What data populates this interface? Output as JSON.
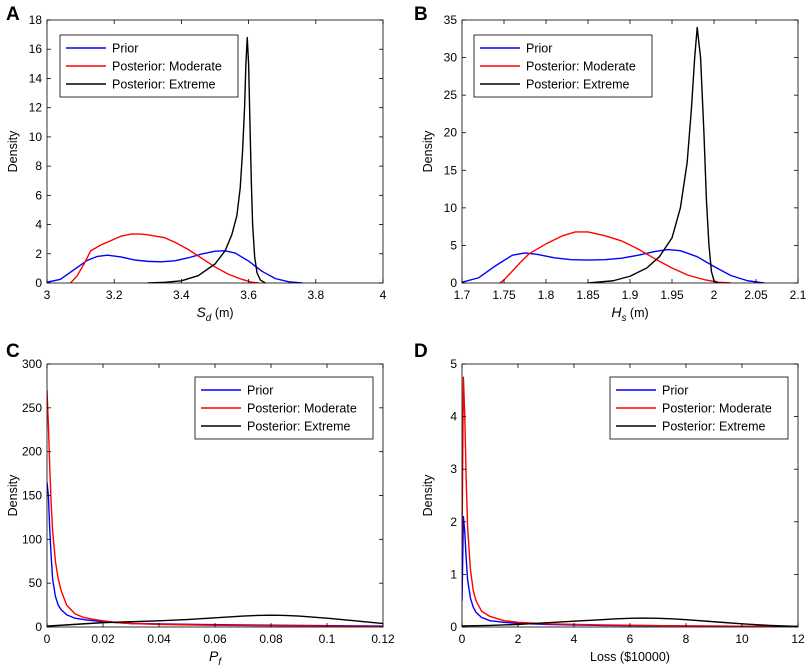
{
  "chart_data": [
    {
      "panel": "A",
      "type": "line",
      "title": "",
      "xlabel": "S",
      "xlabel_sub": "d",
      "xlabel_unit": " (m)",
      "ylabel": "Density",
      "xlim": [
        3,
        4
      ],
      "ylim": [
        0,
        18
      ],
      "xticks": [
        3,
        3.2,
        3.4,
        3.6,
        3.8,
        4
      ],
      "xtick_labels": [
        "3",
        "3.2",
        "3.4",
        "3.6",
        "3.8",
        "4"
      ],
      "yticks": [
        0,
        2,
        4,
        6,
        8,
        10,
        12,
        14,
        16,
        18
      ],
      "ytick_labels": [
        "0",
        "2",
        "4",
        "6",
        "8",
        "10",
        "12",
        "14",
        "16",
        "18"
      ],
      "legend_position": "top-left",
      "series": [
        {
          "name": "Prior",
          "color": "#0000ff",
          "x": [
            3.0,
            3.04,
            3.08,
            3.12,
            3.15,
            3.18,
            3.22,
            3.26,
            3.3,
            3.34,
            3.38,
            3.42,
            3.46,
            3.5,
            3.53,
            3.56,
            3.6,
            3.64,
            3.68,
            3.72,
            3.76
          ],
          "y": [
            0.05,
            0.25,
            0.9,
            1.55,
            1.82,
            1.9,
            1.78,
            1.58,
            1.48,
            1.45,
            1.52,
            1.72,
            1.98,
            2.18,
            2.2,
            2.05,
            1.5,
            0.8,
            0.3,
            0.08,
            0.0
          ]
        },
        {
          "name": "Posterior: Moderate",
          "color": "#ff0000",
          "x": [
            3.07,
            3.09,
            3.11,
            3.13,
            3.16,
            3.19,
            3.22,
            3.25,
            3.28,
            3.3,
            3.32,
            3.35,
            3.38,
            3.42,
            3.46,
            3.5,
            3.54,
            3.58,
            3.61,
            3.63
          ],
          "y": [
            0.0,
            0.5,
            1.3,
            2.2,
            2.6,
            2.9,
            3.2,
            3.35,
            3.35,
            3.3,
            3.22,
            3.1,
            2.8,
            2.3,
            1.7,
            1.1,
            0.6,
            0.25,
            0.05,
            0.0
          ]
        },
        {
          "name": "Posterior: Extreme",
          "color": "#000000",
          "x": [
            3.3,
            3.35,
            3.4,
            3.45,
            3.5,
            3.53,
            3.55,
            3.565,
            3.575,
            3.582,
            3.588,
            3.592,
            3.596,
            3.6,
            3.604,
            3.608,
            3.612,
            3.618,
            3.625,
            3.635,
            3.65
          ],
          "y": [
            0.0,
            0.05,
            0.15,
            0.5,
            1.3,
            2.2,
            3.3,
            4.6,
            6.5,
            9.0,
            12.0,
            15.0,
            16.8,
            15.0,
            11.0,
            7.0,
            4.0,
            1.8,
            0.7,
            0.2,
            0.0
          ]
        }
      ]
    },
    {
      "panel": "B",
      "type": "line",
      "title": "",
      "xlabel": "H",
      "xlabel_sub": "s",
      "xlabel_unit": " (m)",
      "ylabel": "Density",
      "xlim": [
        1.7,
        2.1
      ],
      "ylim": [
        0,
        35
      ],
      "xticks": [
        1.7,
        1.75,
        1.8,
        1.85,
        1.9,
        1.95,
        2.0,
        2.05,
        2.1
      ],
      "xtick_labels": [
        "1.7",
        "1.75",
        "1.8",
        "1.85",
        "1.9",
        "1.95",
        "2",
        "2.05",
        "2.1"
      ],
      "yticks": [
        0,
        5,
        10,
        15,
        20,
        25,
        30,
        35
      ],
      "ytick_labels": [
        "0",
        "5",
        "10",
        "15",
        "20",
        "25",
        "30",
        "35"
      ],
      "legend_position": "top-left",
      "series": [
        {
          "name": "Prior",
          "color": "#0000ff",
          "x": [
            1.7,
            1.72,
            1.74,
            1.76,
            1.775,
            1.79,
            1.81,
            1.83,
            1.85,
            1.87,
            1.89,
            1.91,
            1.93,
            1.945,
            1.96,
            1.98,
            2.0,
            2.02,
            2.04,
            2.06
          ],
          "y": [
            0.1,
            0.7,
            2.3,
            3.7,
            4.0,
            3.8,
            3.35,
            3.1,
            3.05,
            3.1,
            3.3,
            3.7,
            4.2,
            4.45,
            4.3,
            3.5,
            2.2,
            1.0,
            0.3,
            0.0
          ]
        },
        {
          "name": "Posterior: Moderate",
          "color": "#ff0000",
          "x": [
            1.745,
            1.75,
            1.76,
            1.77,
            1.78,
            1.8,
            1.82,
            1.835,
            1.85,
            1.87,
            1.89,
            1.91,
            1.93,
            1.95,
            1.97,
            1.99,
            2.005,
            2.02
          ],
          "y": [
            0.0,
            0.4,
            1.6,
            2.8,
            3.9,
            5.2,
            6.3,
            6.8,
            6.8,
            6.3,
            5.6,
            4.5,
            3.2,
            2.0,
            1.0,
            0.4,
            0.1,
            0.0
          ]
        },
        {
          "name": "Posterior: Extreme",
          "color": "#000000",
          "x": [
            1.85,
            1.88,
            1.9,
            1.92,
            1.935,
            1.95,
            1.96,
            1.968,
            1.973,
            1.977,
            1.98,
            1.984,
            1.988,
            1.991,
            1.994,
            1.997,
            2.0,
            2.005
          ],
          "y": [
            0.0,
            0.3,
            0.9,
            2.0,
            3.5,
            6.0,
            10.0,
            16.0,
            23.0,
            30.0,
            34.0,
            30.0,
            20.0,
            11.0,
            5.0,
            1.5,
            0.3,
            0.0
          ]
        }
      ]
    },
    {
      "panel": "C",
      "type": "line",
      "title": "",
      "xlabel": "P",
      "xlabel_sub": "f",
      "xlabel_unit": "",
      "ylabel": "Density",
      "xlim": [
        0,
        0.12
      ],
      "ylim": [
        0,
        300
      ],
      "xticks": [
        0,
        0.02,
        0.04,
        0.06,
        0.08,
        0.1,
        0.12
      ],
      "xtick_labels": [
        "0",
        "0.02",
        "0.04",
        "0.06",
        "0.08",
        "0.1",
        "0.12"
      ],
      "yticks": [
        0,
        50,
        100,
        150,
        200,
        250,
        300
      ],
      "ytick_labels": [
        "0",
        "50",
        "100",
        "150",
        "200",
        "250",
        "300"
      ],
      "legend_position": "top-right",
      "series": [
        {
          "name": "Prior",
          "color": "#0000ff",
          "x": [
            0.0,
            0.0005,
            0.001,
            0.0015,
            0.002,
            0.003,
            0.004,
            0.005,
            0.007,
            0.01,
            0.014,
            0.02,
            0.03,
            0.05,
            0.08,
            0.12
          ],
          "y": [
            165,
            150,
            110,
            80,
            55,
            35,
            25,
            20,
            14,
            10,
            8,
            6,
            4,
            3,
            2,
            1
          ]
        },
        {
          "name": "Posterior: Moderate",
          "color": "#ff0000",
          "x": [
            0.0,
            0.0005,
            0.001,
            0.0015,
            0.002,
            0.003,
            0.004,
            0.005,
            0.007,
            0.01,
            0.013,
            0.016,
            0.02,
            0.025,
            0.03,
            0.04,
            0.06,
            0.08,
            0.1,
            0.12
          ],
          "y": [
            270,
            230,
            180,
            140,
            110,
            75,
            55,
            42,
            25,
            15,
            11,
            9,
            7,
            5,
            4,
            3,
            2,
            1.5,
            1,
            0.5
          ]
        },
        {
          "name": "Posterior: Extreme",
          "color": "#000000",
          "x": [
            0.0,
            0.01,
            0.02,
            0.03,
            0.04,
            0.05,
            0.06,
            0.07,
            0.075,
            0.08,
            0.085,
            0.09,
            0.1,
            0.11,
            0.12
          ],
          "y": [
            1,
            3,
            5,
            6,
            7,
            8.5,
            10.5,
            12.5,
            13.2,
            13.5,
            13.2,
            12.5,
            10,
            7,
            4
          ]
        }
      ]
    },
    {
      "panel": "D",
      "type": "line",
      "title": "",
      "xlabel": "Loss ($10000)",
      "xlabel_sub": "",
      "xlabel_unit": "",
      "ylabel": "Density",
      "xlim": [
        0,
        12
      ],
      "ylim": [
        0,
        5
      ],
      "xticks": [
        0,
        2,
        4,
        6,
        8,
        10,
        12
      ],
      "xtick_labels": [
        "0",
        "2",
        "4",
        "6",
        "8",
        "10",
        "12"
      ],
      "yticks": [
        0,
        1,
        2,
        3,
        4,
        5
      ],
      "ytick_labels": [
        "0",
        "1",
        "2",
        "3",
        "4",
        "5"
      ],
      "legend_position": "top-right",
      "series": [
        {
          "name": "Prior",
          "color": "#0000ff",
          "x": [
            0.0,
            0.05,
            0.1,
            0.15,
            0.2,
            0.3,
            0.4,
            0.5,
            0.7,
            1.0,
            1.5,
            2.0,
            3.0,
            5.0,
            8.0,
            12.0
          ],
          "y": [
            0.5,
            2.1,
            1.8,
            1.3,
            0.9,
            0.55,
            0.38,
            0.28,
            0.18,
            0.12,
            0.09,
            0.07,
            0.05,
            0.03,
            0.02,
            0.01
          ]
        },
        {
          "name": "Posterior: Moderate",
          "color": "#ff0000",
          "x": [
            0.0,
            0.05,
            0.1,
            0.15,
            0.2,
            0.3,
            0.4,
            0.5,
            0.7,
            1.0,
            1.5,
            2.0,
            3.0,
            5.0,
            8.0,
            12.0
          ],
          "y": [
            1.5,
            4.75,
            4.0,
            2.8,
            1.9,
            1.1,
            0.7,
            0.5,
            0.3,
            0.2,
            0.12,
            0.09,
            0.06,
            0.04,
            0.02,
            0.01
          ]
        },
        {
          "name": "Posterior: Extreme",
          "color": "#000000",
          "x": [
            0.0,
            1.0,
            2.0,
            3.0,
            4.0,
            5.0,
            5.5,
            6.0,
            6.5,
            7.0,
            7.5,
            8.0,
            9.0,
            10.0,
            11.0,
            12.0
          ],
          "y": [
            0.02,
            0.03,
            0.05,
            0.08,
            0.11,
            0.14,
            0.155,
            0.165,
            0.17,
            0.165,
            0.155,
            0.14,
            0.1,
            0.06,
            0.03,
            0.01
          ]
        }
      ]
    }
  ]
}
